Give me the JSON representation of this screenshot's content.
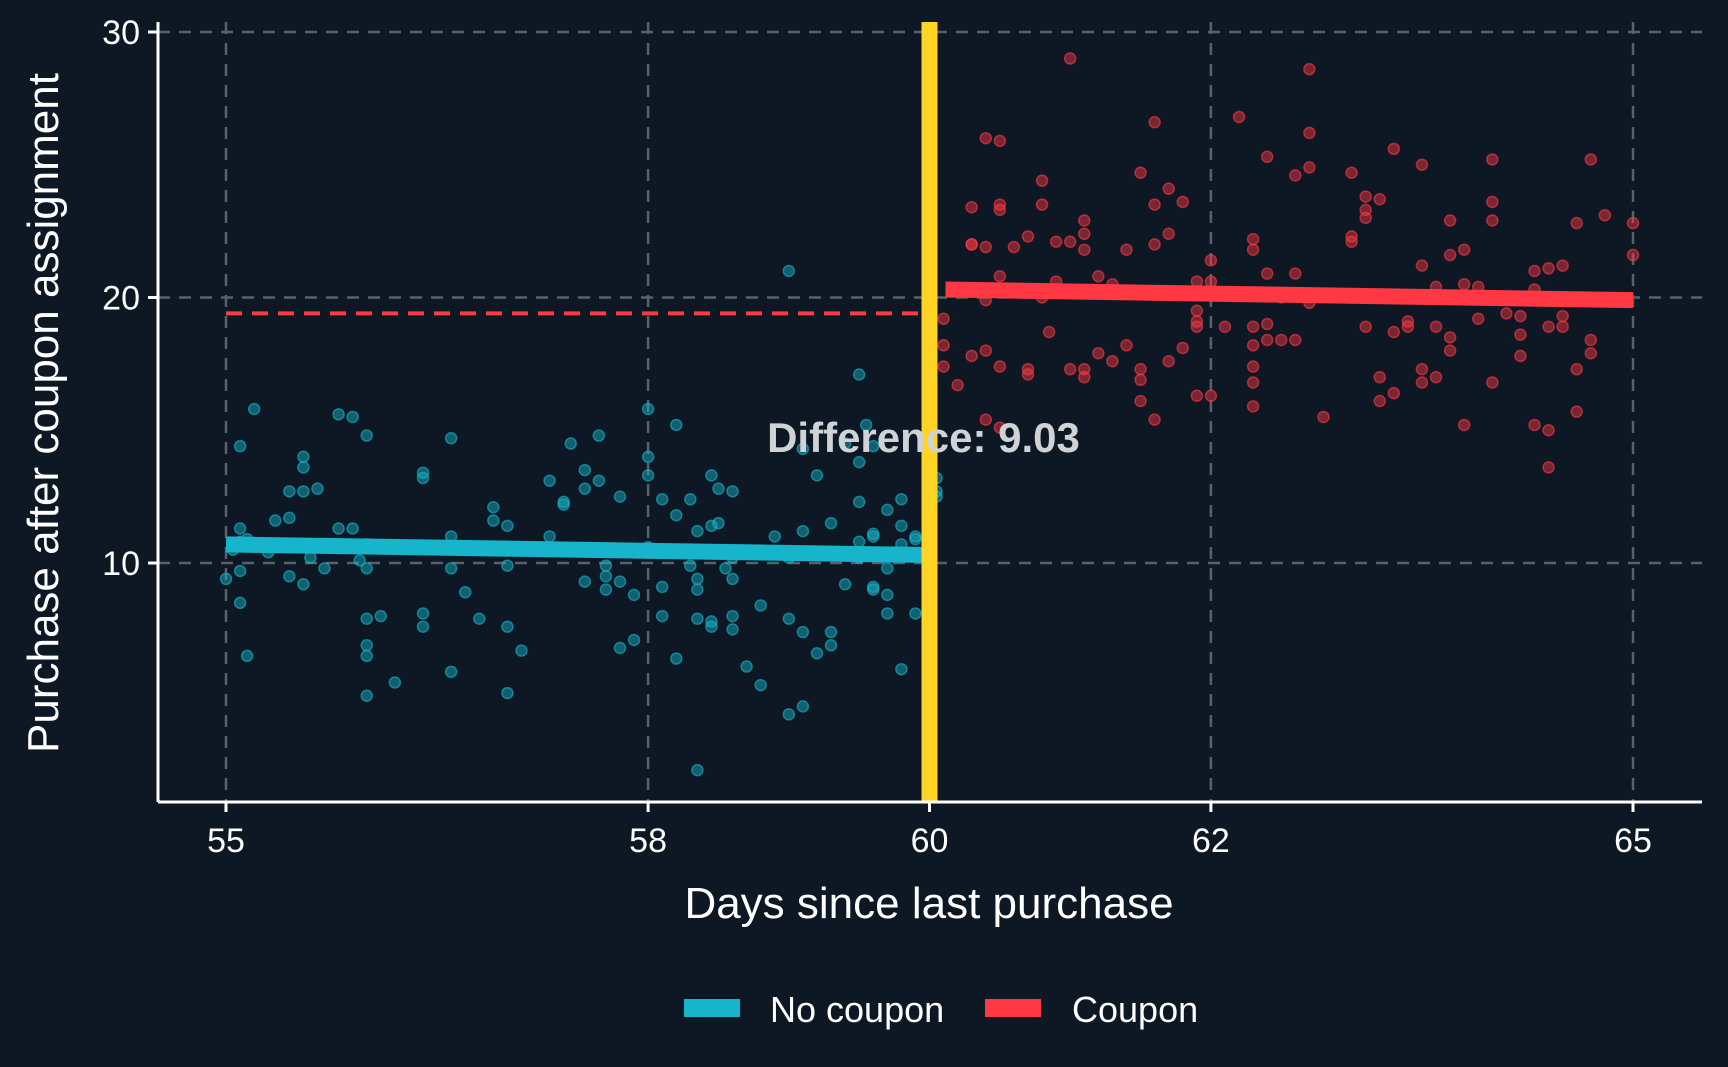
{
  "chart_data": {
    "type": "scatter",
    "xlabel": "Days since last purchase",
    "ylabel": "Purchase after coupon assignment",
    "xlim": [
      54.8,
      65.2
    ],
    "ylim": [
      1.5,
      30.5
    ],
    "x_ticks": [
      55,
      58,
      60,
      62,
      65
    ],
    "y_ticks": [
      10,
      20,
      30
    ],
    "x_tick_labels": [
      "55",
      "58",
      "60",
      "62",
      "65"
    ],
    "y_tick_labels": [
      "10",
      "20",
      "30"
    ],
    "grid": true,
    "legend_position": "bottom",
    "cutoff": 60,
    "annotation": {
      "text": "Difference: 9.03",
      "x": 60,
      "y": 14.7
    },
    "counterfactual": {
      "x": [
        55,
        60
      ],
      "y": [
        19.4,
        19.4
      ],
      "color": "#ff3844"
    },
    "colors": {
      "background": "#0d1824",
      "cutoff": "#ffd424",
      "grid": "#5a6068",
      "axis": "#ffffff"
    },
    "series": [
      {
        "name": "No coupon",
        "color": "#17b5cc",
        "fit": {
          "x": [
            55,
            60
          ],
          "y": [
            10.7,
            10.3
          ]
        },
        "points": [
          [
            55.0,
            9.4
          ],
          [
            55.05,
            10.5
          ],
          [
            55.1,
            11.3
          ],
          [
            55.1,
            10.8
          ],
          [
            55.1,
            14.4
          ],
          [
            55.1,
            9.7
          ],
          [
            55.1,
            8.5
          ],
          [
            55.15,
            10.9
          ],
          [
            55.15,
            6.5
          ],
          [
            55.2,
            15.8
          ],
          [
            55.3,
            10.4
          ],
          [
            55.35,
            11.6
          ],
          [
            55.45,
            12.7
          ],
          [
            55.45,
            11.7
          ],
          [
            55.45,
            9.5
          ],
          [
            55.55,
            13.6
          ],
          [
            55.55,
            14.0
          ],
          [
            55.55,
            12.7
          ],
          [
            55.55,
            9.2
          ],
          [
            55.6,
            10.2
          ],
          [
            55.65,
            12.8
          ],
          [
            55.7,
            9.8
          ],
          [
            55.8,
            15.6
          ],
          [
            55.8,
            11.3
          ],
          [
            55.9,
            15.5
          ],
          [
            55.9,
            11.3
          ],
          [
            55.95,
            10.1
          ],
          [
            56.0,
            10.7
          ],
          [
            56.0,
            9.8
          ],
          [
            56.0,
            14.8
          ],
          [
            56.0,
            7.9
          ],
          [
            56.0,
            6.9
          ],
          [
            56.0,
            6.5
          ],
          [
            56.0,
            5.0
          ],
          [
            56.1,
            8.0
          ],
          [
            56.2,
            5.5
          ],
          [
            56.4,
            13.4
          ],
          [
            56.4,
            13.2
          ],
          [
            56.4,
            8.1
          ],
          [
            56.4,
            7.6
          ],
          [
            56.6,
            14.7
          ],
          [
            56.6,
            11.0
          ],
          [
            56.6,
            9.8
          ],
          [
            56.6,
            5.9
          ],
          [
            56.7,
            8.9
          ],
          [
            56.8,
            7.9
          ],
          [
            56.9,
            12.1
          ],
          [
            56.9,
            11.6
          ],
          [
            57.0,
            11.4
          ],
          [
            57.0,
            9.9
          ],
          [
            57.0,
            7.6
          ],
          [
            57.0,
            5.1
          ],
          [
            57.1,
            6.7
          ],
          [
            57.3,
            13.1
          ],
          [
            57.3,
            11.0
          ],
          [
            57.4,
            12.3
          ],
          [
            57.4,
            12.2
          ],
          [
            57.45,
            14.5
          ],
          [
            57.55,
            13.5
          ],
          [
            57.55,
            12.8
          ],
          [
            57.55,
            9.3
          ],
          [
            57.65,
            14.8
          ],
          [
            57.65,
            13.1
          ],
          [
            57.7,
            9.9
          ],
          [
            57.7,
            9.5
          ],
          [
            57.7,
            9.0
          ],
          [
            57.75,
            10.5
          ],
          [
            57.8,
            12.5
          ],
          [
            57.8,
            9.3
          ],
          [
            57.8,
            6.8
          ],
          [
            57.9,
            8.8
          ],
          [
            57.9,
            7.1
          ],
          [
            58.0,
            15.8
          ],
          [
            58.0,
            14.0
          ],
          [
            58.0,
            13.3
          ],
          [
            58.0,
            10.6
          ],
          [
            58.1,
            12.4
          ],
          [
            58.1,
            9.1
          ],
          [
            58.1,
            8.0
          ],
          [
            58.2,
            15.2
          ],
          [
            58.2,
            11.8
          ],
          [
            58.2,
            6.4
          ],
          [
            58.3,
            12.4
          ],
          [
            58.3,
            9.9
          ],
          [
            58.35,
            11.2
          ],
          [
            58.35,
            9.4
          ],
          [
            58.35,
            9.0
          ],
          [
            58.35,
            7.9
          ],
          [
            58.35,
            2.2
          ],
          [
            58.45,
            13.3
          ],
          [
            58.45,
            11.4
          ],
          [
            58.45,
            7.8
          ],
          [
            58.45,
            7.6
          ],
          [
            58.5,
            11.5
          ],
          [
            58.5,
            12.8
          ],
          [
            58.55,
            10.4
          ],
          [
            58.55,
            9.8
          ],
          [
            58.6,
            12.7
          ],
          [
            58.6,
            10.2
          ],
          [
            58.6,
            9.4
          ],
          [
            58.6,
            8.0
          ],
          [
            58.6,
            7.5
          ],
          [
            58.7,
            6.1
          ],
          [
            58.8,
            8.4
          ],
          [
            58.8,
            5.4
          ],
          [
            58.9,
            11.0
          ],
          [
            59.0,
            10.2
          ],
          [
            59.0,
            7.9
          ],
          [
            59.0,
            4.3
          ],
          [
            59.0,
            21.0
          ],
          [
            59.1,
            14.3
          ],
          [
            59.1,
            11.2
          ],
          [
            59.1,
            7.4
          ],
          [
            59.1,
            4.6
          ],
          [
            59.2,
            13.3
          ],
          [
            59.2,
            10.3
          ],
          [
            59.2,
            6.6
          ],
          [
            59.3,
            11.5
          ],
          [
            59.3,
            7.4
          ],
          [
            59.3,
            6.9
          ],
          [
            59.4,
            14.5
          ],
          [
            59.4,
            9.2
          ],
          [
            59.5,
            17.1
          ],
          [
            59.5,
            13.8
          ],
          [
            59.5,
            12.3
          ],
          [
            59.5,
            10.8
          ],
          [
            59.5,
            10.2
          ],
          [
            59.55,
            15.2
          ],
          [
            59.6,
            14.4
          ],
          [
            59.6,
            11.1
          ],
          [
            59.6,
            9.1
          ],
          [
            59.6,
            9.0
          ],
          [
            59.7,
            12.0
          ],
          [
            59.7,
            9.8
          ],
          [
            59.7,
            8.8
          ],
          [
            59.7,
            8.1
          ],
          [
            59.8,
            12.4
          ],
          [
            59.8,
            11.4
          ],
          [
            59.8,
            10.7
          ],
          [
            59.8,
            6.0
          ],
          [
            59.9,
            11.0
          ],
          [
            59.9,
            8.1
          ],
          [
            60.0,
            13.0
          ],
          [
            60.0,
            11.5
          ],
          [
            60.0,
            11.1
          ],
          [
            60.0,
            9.3
          ],
          [
            60.0,
            8.5
          ],
          [
            60.0,
            7.8
          ],
          [
            60.0,
            7.0
          ],
          [
            60.0,
            5.5
          ],
          [
            60.05,
            13.2
          ],
          [
            60.05,
            12.7
          ],
          [
            60.05,
            12.5
          ],
          [
            59.9,
            10.9
          ],
          [
            59.6,
            11.0
          ]
        ]
      },
      {
        "name": "Coupon",
        "color": "#ff3844",
        "fit": {
          "x": [
            60,
            65
          ],
          "y": [
            20.3,
            19.9
          ]
        },
        "points": [
          [
            60.0,
            19.4
          ],
          [
            60.1,
            19.2
          ],
          [
            60.1,
            18.2
          ],
          [
            60.1,
            17.4
          ],
          [
            60.2,
            16.7
          ],
          [
            60.3,
            23.4
          ],
          [
            60.3,
            22.0
          ],
          [
            60.3,
            17.8
          ],
          [
            60.4,
            26.0
          ],
          [
            60.4,
            21.9
          ],
          [
            60.4,
            19.9
          ],
          [
            60.4,
            18.0
          ],
          [
            60.4,
            15.4
          ],
          [
            60.5,
            25.9
          ],
          [
            60.5,
            23.5
          ],
          [
            60.5,
            23.3
          ],
          [
            60.5,
            20.8
          ],
          [
            60.5,
            17.4
          ],
          [
            60.5,
            15.1
          ],
          [
            60.6,
            21.9
          ],
          [
            60.7,
            22.3
          ],
          [
            60.7,
            17.3
          ],
          [
            60.7,
            17.1
          ],
          [
            60.8,
            24.4
          ],
          [
            60.8,
            23.5
          ],
          [
            60.8,
            20.0
          ],
          [
            60.85,
            18.7
          ],
          [
            60.9,
            22.1
          ],
          [
            60.9,
            20.6
          ],
          [
            61.0,
            29.0
          ],
          [
            61.0,
            22.1
          ],
          [
            61.0,
            17.3
          ],
          [
            61.1,
            22.9
          ],
          [
            61.1,
            22.4
          ],
          [
            61.1,
            21.8
          ],
          [
            61.1,
            17.3
          ],
          [
            61.1,
            17.0
          ],
          [
            61.2,
            20.8
          ],
          [
            61.2,
            17.9
          ],
          [
            61.3,
            20.5
          ],
          [
            61.3,
            17.6
          ],
          [
            61.4,
            21.8
          ],
          [
            61.4,
            18.2
          ],
          [
            61.5,
            24.7
          ],
          [
            61.5,
            17.3
          ],
          [
            61.5,
            16.9
          ],
          [
            61.5,
            16.1
          ],
          [
            61.6,
            26.6
          ],
          [
            61.6,
            23.5
          ],
          [
            61.6,
            22.0
          ],
          [
            61.6,
            15.4
          ],
          [
            61.7,
            24.1
          ],
          [
            61.7,
            22.4
          ],
          [
            61.7,
            17.6
          ],
          [
            61.8,
            23.6
          ],
          [
            61.8,
            18.1
          ],
          [
            61.9,
            20.6
          ],
          [
            61.9,
            19.5
          ],
          [
            61.9,
            19.1
          ],
          [
            61.9,
            18.9
          ],
          [
            61.9,
            16.3
          ],
          [
            62.0,
            21.4
          ],
          [
            62.0,
            20.6
          ],
          [
            62.0,
            16.3
          ],
          [
            62.1,
            18.9
          ],
          [
            62.2,
            26.8
          ],
          [
            62.3,
            22.2
          ],
          [
            62.3,
            21.8
          ],
          [
            62.3,
            18.9
          ],
          [
            62.3,
            18.2
          ],
          [
            62.3,
            17.4
          ],
          [
            62.3,
            16.8
          ],
          [
            62.3,
            15.9
          ],
          [
            62.4,
            25.3
          ],
          [
            62.4,
            20.9
          ],
          [
            62.4,
            19.0
          ],
          [
            62.4,
            18.4
          ],
          [
            62.5,
            20.0
          ],
          [
            62.6,
            24.6
          ],
          [
            62.6,
            20.9
          ],
          [
            62.6,
            18.4
          ],
          [
            62.7,
            28.6
          ],
          [
            62.7,
            26.2
          ],
          [
            62.7,
            24.9
          ],
          [
            62.7,
            19.8
          ],
          [
            62.8,
            15.5
          ],
          [
            63.0,
            24.7
          ],
          [
            63.0,
            22.3
          ],
          [
            63.0,
            22.1
          ],
          [
            63.1,
            23.8
          ],
          [
            63.1,
            23.3
          ],
          [
            63.1,
            23.0
          ],
          [
            63.1,
            18.9
          ],
          [
            63.2,
            23.7
          ],
          [
            63.2,
            17.0
          ],
          [
            63.2,
            16.1
          ],
          [
            63.3,
            25.6
          ],
          [
            63.3,
            18.7
          ],
          [
            63.3,
            16.4
          ],
          [
            63.4,
            19.1
          ],
          [
            63.4,
            18.9
          ],
          [
            63.5,
            25.0
          ],
          [
            63.5,
            21.2
          ],
          [
            63.5,
            17.3
          ],
          [
            63.5,
            16.8
          ],
          [
            63.6,
            20.4
          ],
          [
            63.6,
            18.9
          ],
          [
            63.6,
            17.0
          ],
          [
            63.7,
            22.9
          ],
          [
            63.7,
            21.6
          ],
          [
            63.7,
            18.5
          ],
          [
            63.7,
            18.0
          ],
          [
            63.8,
            21.8
          ],
          [
            63.8,
            20.5
          ],
          [
            63.8,
            15.2
          ],
          [
            63.9,
            20.4
          ],
          [
            63.9,
            19.2
          ],
          [
            64.0,
            25.2
          ],
          [
            64.0,
            23.6
          ],
          [
            64.0,
            22.9
          ],
          [
            64.0,
            16.8
          ],
          [
            64.1,
            19.4
          ],
          [
            64.2,
            20.0
          ],
          [
            64.2,
            19.3
          ],
          [
            64.2,
            18.6
          ],
          [
            64.2,
            17.8
          ],
          [
            64.3,
            21.0
          ],
          [
            64.3,
            20.3
          ],
          [
            64.3,
            15.2
          ],
          [
            64.4,
            21.1
          ],
          [
            64.4,
            18.9
          ],
          [
            64.4,
            15.0
          ],
          [
            64.4,
            13.6
          ],
          [
            64.5,
            21.2
          ],
          [
            64.5,
            19.3
          ],
          [
            64.5,
            18.9
          ],
          [
            64.6,
            22.8
          ],
          [
            64.6,
            17.3
          ],
          [
            64.6,
            15.7
          ],
          [
            64.7,
            25.2
          ],
          [
            64.7,
            18.4
          ],
          [
            64.7,
            17.9
          ],
          [
            64.8,
            23.1
          ],
          [
            65.0,
            22.8
          ],
          [
            65.0,
            21.6
          ],
          [
            60.3,
            22.0
          ],
          [
            62.5,
            18.4
          ],
          [
            63.0,
            20.0
          ]
        ]
      }
    ]
  }
}
